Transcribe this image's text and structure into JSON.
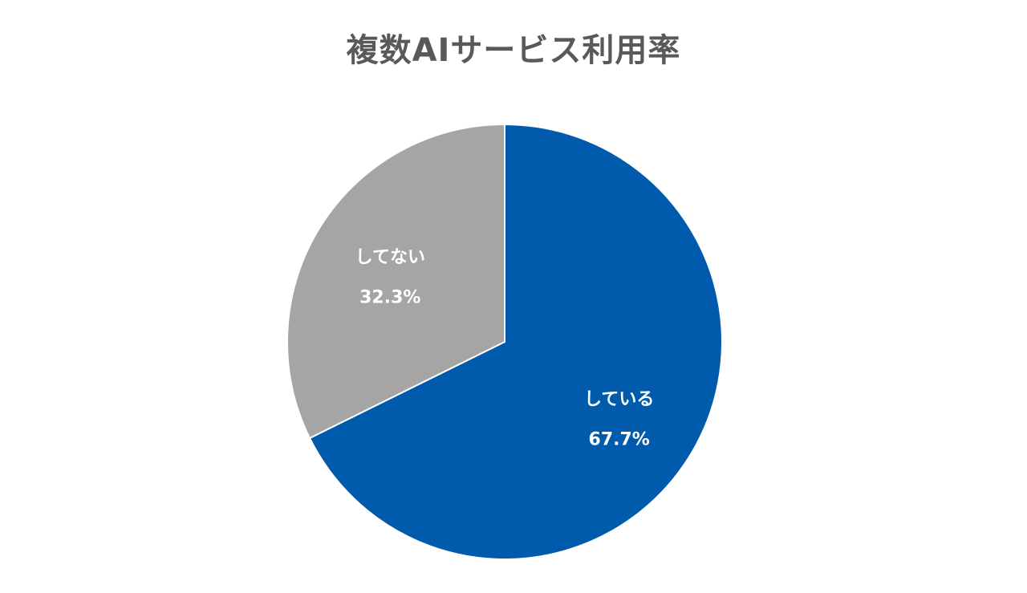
{
  "chart_data": {
    "type": "pie",
    "title": "複数AIサービス利用率",
    "slices": [
      {
        "label": "している",
        "value": 67.7,
        "value_label": "67.7%",
        "color": "#005bac"
      },
      {
        "label": "してない",
        "value": 32.3,
        "value_label": "32.3%",
        "color": "#a5a5a5"
      }
    ],
    "start_angle": "12 o'clock",
    "direction": "clockwise",
    "slice_border_color": "#ffffff",
    "legend": "none"
  }
}
